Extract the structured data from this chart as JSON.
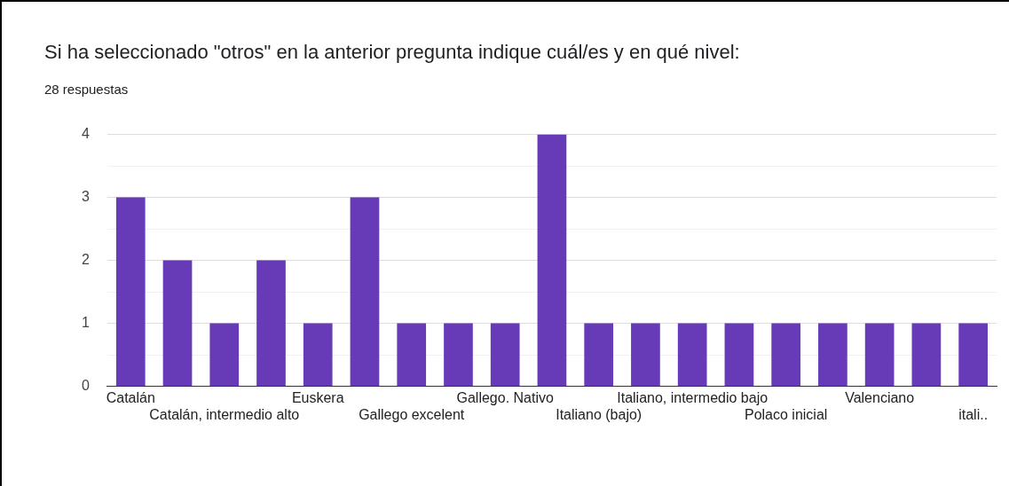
{
  "chart_data": {
    "type": "bar",
    "title": "Si ha seleccionado \"otros\" en la anterior pregunta indique cuál/es y en qué nivel:",
    "subtitle": "28 respuestas",
    "categories": [
      "Catalán",
      null,
      "Catalán, intermedio alto",
      null,
      "Euskera",
      null,
      "Gallego excelent",
      null,
      "Gallego. Nativo",
      null,
      "Italiano (bajo)",
      null,
      "Italiano, intermedio bajo",
      null,
      "Polaco inicial",
      null,
      "Valenciano",
      null,
      "itali.."
    ],
    "values": [
      3,
      2,
      1,
      2,
      1,
      3,
      1,
      1,
      1,
      4,
      1,
      1,
      1,
      1,
      1,
      1,
      1,
      1,
      1
    ],
    "color": "#673ab7",
    "ylim": [
      0,
      4
    ],
    "yticks": [
      0,
      {
        "value": 0.5,
        "label": null
      },
      1,
      {
        "value": 1.5,
        "label": null
      },
      2,
      {
        "value": 2.5,
        "label": null
      },
      3,
      {
        "value": 3.5,
        "label": null
      },
      4
    ],
    "grid": "y",
    "legend": false
  }
}
